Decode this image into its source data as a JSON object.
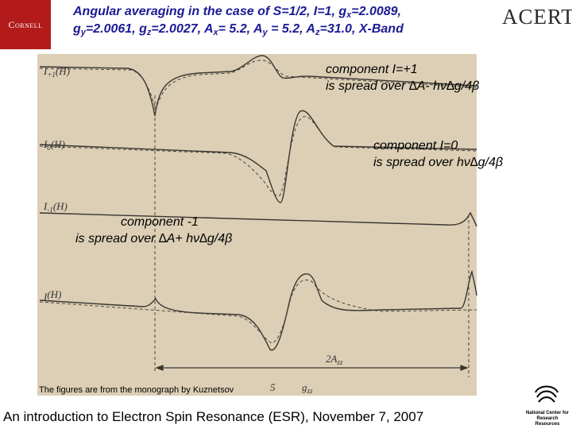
{
  "title": [
    "Angular averaging in the case of S=1/2, I=1, g",
    "x",
    "=2.0089,",
    "g",
    "y",
    "=2.0061, g",
    "z",
    "=2.0027, A",
    "x",
    "= 5.2, A",
    "y",
    " = 5.2, A",
    "z",
    "=31.0, X-Band"
  ],
  "logos": {
    "left": "Cornell",
    "right": "ACERT",
    "bottom": "National Center for Research Resources"
  },
  "annotations": [
    {
      "line1": "component I=+1",
      "line2": "is spread over  ∆A- hν∆g/4β"
    },
    {
      "line1": "component I=0",
      "line2": "is spread over  hν∆g/4β"
    },
    {
      "line1": "component -1",
      "line2": "is spread over  ∆A+ hν∆g/4β"
    }
  ],
  "trace_labels": [
    {
      "main": "I",
      "sub": "+1",
      "rest": "(H)"
    },
    {
      "main": "I",
      "sub": "0",
      "rest": "(H)"
    },
    {
      "main": "I",
      "sub": "-1",
      "rest": "(H)"
    },
    {
      "main": "I",
      "sub": "",
      "rest": "(H)"
    }
  ],
  "figure_marks": {
    "span_main": "2A",
    "span_sub": "zz",
    "left_mark": "5",
    "g_main": "g",
    "g_sub": "zz"
  },
  "caption": "The figures are from the monograph by Kuznetsov",
  "footer": "An introduction to Electron Spin Resonance (ESR), November 7, 2007"
}
